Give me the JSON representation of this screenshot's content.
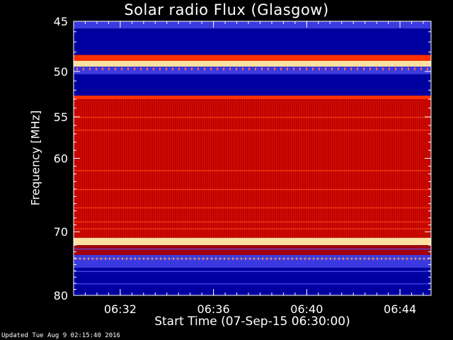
{
  "chart_data": {
    "type": "heatmap",
    "title": "Solar radio Flux (Glasgow)",
    "ylabel": "Frequency [MHz]",
    "xlabel": "Start Time (07-Sep-15 06:30:00)",
    "x_unit": "time",
    "x_range": [
      "06:30:00",
      "06:45:20"
    ],
    "x_ticks": [
      "06:32",
      "06:36",
      "06:40",
      "06:44"
    ],
    "y_unit": "MHz",
    "y_scale": "log",
    "y_range": [
      45,
      80
    ],
    "y_ticks": [
      45,
      50,
      55,
      60,
      70,
      80
    ],
    "colormap": [
      "#0000a0",
      "#3a3ae0",
      "#c00000",
      "#ff3000",
      "#ffe0a0"
    ],
    "bands": [
      {
        "from": 45.0,
        "to": 45.7,
        "level": "mid-blue"
      },
      {
        "from": 45.7,
        "to": 48.3,
        "level": "low"
      },
      {
        "from": 48.3,
        "to": 48.9,
        "level": "high"
      },
      {
        "from": 48.9,
        "to": 49.5,
        "level": "very-high"
      },
      {
        "from": 49.5,
        "to": 50.3,
        "level": "mid-blue"
      },
      {
        "from": 50.3,
        "to": 52.6,
        "level": "low"
      },
      {
        "from": 52.6,
        "to": 53.0,
        "level": "high"
      },
      {
        "from": 53.0,
        "to": 70.9,
        "level": "red"
      },
      {
        "from": 70.9,
        "to": 72.0,
        "level": "very-high"
      },
      {
        "from": 72.0,
        "to": 73.5,
        "level": "red-dark"
      },
      {
        "from": 73.5,
        "to": 75.5,
        "level": "mid-blue"
      },
      {
        "from": 75.5,
        "to": 80.0,
        "level": "low"
      }
    ]
  },
  "footer": {
    "updated": "Updated Tue Aug  9 02:15:40 2016"
  }
}
